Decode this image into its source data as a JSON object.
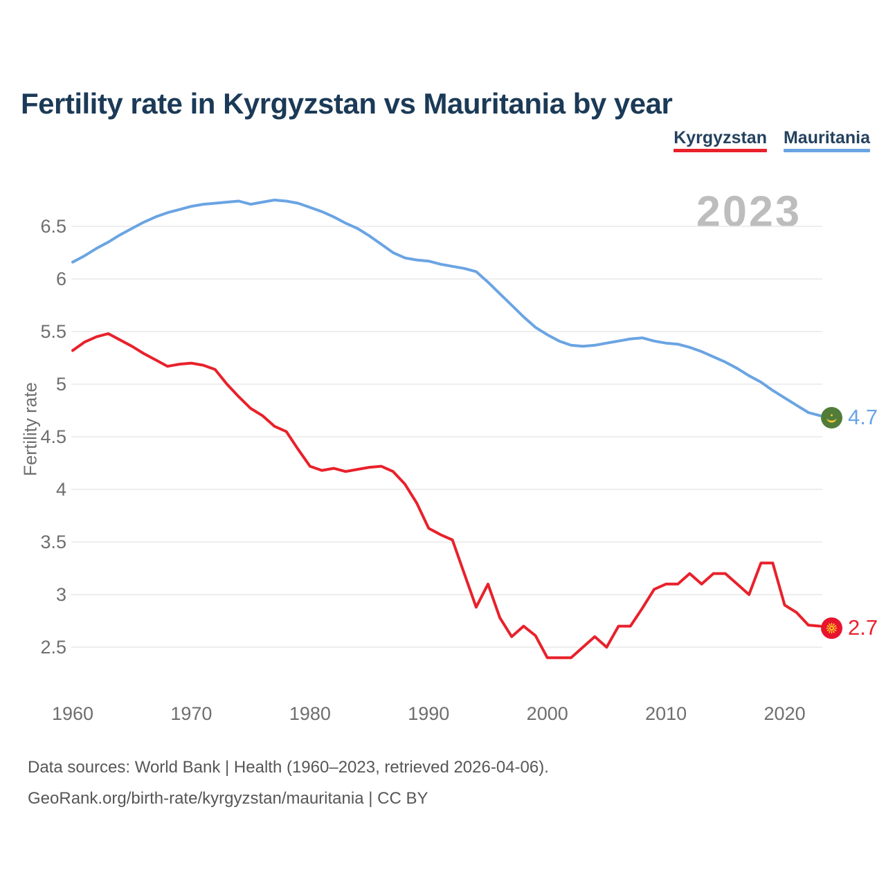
{
  "title": "Fertility rate in Kyrgyzstan vs Mauritania by year",
  "watermark": "2023",
  "legend": [
    {
      "label": "Kyrgyzstan"
    },
    {
      "label": "Mauritania"
    }
  ],
  "footer": {
    "line1": "Data sources: World Bank | Health (1960–2023, retrieved 2026-04-06).",
    "line2": "GeoRank.org/birth-rate/kyrgyzstan/mauritania | CC BY"
  },
  "colors": {
    "kyrgyzstan": "#e8212b",
    "mauritania": "#6aa4e3",
    "grid": "#e8e8e8",
    "axis_text": "#6e6e6e",
    "title_text": "#1b3a57",
    "watermark_text": "#bdbdbd"
  },
  "chart_data": {
    "type": "line",
    "title": "Fertility rate in Kyrgyzstan vs Mauritania by year",
    "xlabel": "",
    "ylabel": "Fertility rate",
    "xlim": [
      1960,
      2023
    ],
    "ylim": [
      2.2,
      6.9
    ],
    "grid": true,
    "legend_position": "top-right",
    "x_ticks": [
      1960,
      1970,
      1980,
      1990,
      2000,
      2010,
      2020
    ],
    "y_ticks": [
      2.5,
      3,
      3.5,
      4,
      4.5,
      5,
      5.5,
      6,
      6.5
    ],
    "x": [
      1960,
      1961,
      1962,
      1963,
      1964,
      1965,
      1966,
      1967,
      1968,
      1969,
      1970,
      1971,
      1972,
      1973,
      1974,
      1975,
      1976,
      1977,
      1978,
      1979,
      1980,
      1981,
      1982,
      1983,
      1984,
      1985,
      1986,
      1987,
      1988,
      1989,
      1990,
      1991,
      1992,
      1993,
      1994,
      1995,
      1996,
      1997,
      1998,
      1999,
      2000,
      2001,
      2002,
      2003,
      2004,
      2005,
      2006,
      2007,
      2008,
      2009,
      2010,
      2011,
      2012,
      2013,
      2014,
      2015,
      2016,
      2017,
      2018,
      2019,
      2020,
      2021,
      2022,
      2023
    ],
    "series": [
      {
        "name": "Kyrgyzstan",
        "color": "#e8212b",
        "end_label": "2.7",
        "flag": "kyrgyzstan-flag",
        "values": [
          5.32,
          5.4,
          5.45,
          5.48,
          5.42,
          5.36,
          5.29,
          5.23,
          5.17,
          5.19,
          5.2,
          5.18,
          5.14,
          5.0,
          4.88,
          4.77,
          4.7,
          4.6,
          4.55,
          4.38,
          4.22,
          4.18,
          4.2,
          4.17,
          4.19,
          4.21,
          4.22,
          4.17,
          4.05,
          3.87,
          3.63,
          3.57,
          3.52,
          3.2,
          2.88,
          3.1,
          2.78,
          2.6,
          2.7,
          2.61,
          2.4,
          2.4,
          2.4,
          2.5,
          2.6,
          2.5,
          2.7,
          2.7,
          2.87,
          3.05,
          3.1,
          3.1,
          3.2,
          3.1,
          3.2,
          3.2,
          3.1,
          3.0,
          3.3,
          3.3,
          2.9,
          2.83,
          2.71,
          2.7
        ]
      },
      {
        "name": "Mauritania",
        "color": "#6aa4e3",
        "end_label": "4.7",
        "flag": "mauritania-flag",
        "values": [
          6.16,
          6.22,
          6.29,
          6.35,
          6.42,
          6.48,
          6.54,
          6.59,
          6.63,
          6.66,
          6.69,
          6.71,
          6.72,
          6.73,
          6.74,
          6.71,
          6.73,
          6.75,
          6.74,
          6.72,
          6.68,
          6.64,
          6.59,
          6.53,
          6.48,
          6.41,
          6.33,
          6.25,
          6.2,
          6.18,
          6.17,
          6.14,
          6.12,
          6.1,
          6.07,
          5.97,
          5.86,
          5.75,
          5.64,
          5.54,
          5.47,
          5.41,
          5.37,
          5.36,
          5.37,
          5.39,
          5.41,
          5.43,
          5.44,
          5.41,
          5.39,
          5.38,
          5.35,
          5.31,
          5.26,
          5.21,
          5.15,
          5.08,
          5.02,
          4.94,
          4.87,
          4.8,
          4.73,
          4.7
        ]
      }
    ]
  }
}
